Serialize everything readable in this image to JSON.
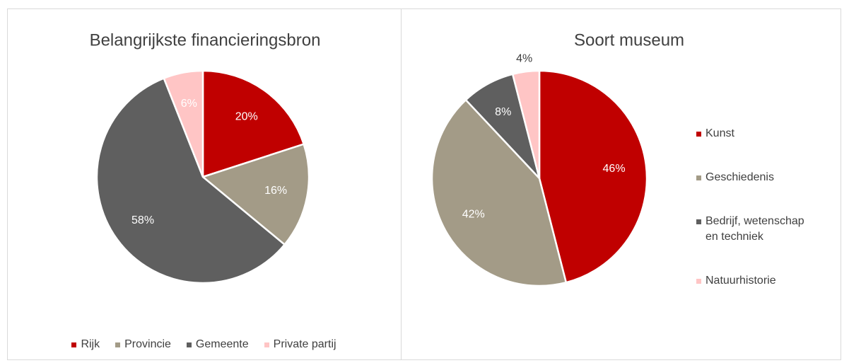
{
  "chart_data": [
    {
      "type": "pie",
      "title": "Belangrijkste financieringsbron",
      "categories": [
        "Rijk",
        "Provincie",
        "Gemeente",
        "Private partij"
      ],
      "values": [
        20,
        16,
        58,
        6
      ],
      "value_labels": [
        "20%",
        "16%",
        "58%",
        "6%"
      ],
      "colors": [
        "#c00000",
        "#a39b87",
        "#5f5f5f",
        "#ffc5c5"
      ],
      "legend": "bottom"
    },
    {
      "type": "pie",
      "title": "Soort museum",
      "categories": [
        "Kunst",
        "Geschiedenis",
        "Bedrijf, wetenschap en techniek",
        "Natuurhistorie"
      ],
      "values": [
        46,
        42,
        8,
        4
      ],
      "value_labels": [
        "46%",
        "42%",
        "8%",
        "4%"
      ],
      "colors": [
        "#c00000",
        "#a39b87",
        "#5f5f5f",
        "#ffc5c5"
      ],
      "legend": "right"
    }
  ]
}
